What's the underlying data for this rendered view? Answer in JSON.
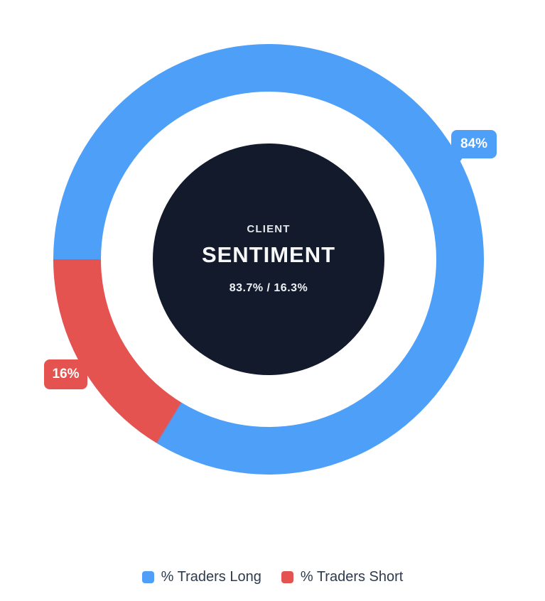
{
  "chart_data": {
    "type": "doughnut",
    "title": "CLIENT SENTIMENT",
    "categories": [
      "% Traders Long",
      "% Traders Short"
    ],
    "values": [
      83.7,
      16.3
    ],
    "series": [
      {
        "label": "% Traders Long",
        "value": 83.7,
        "badge": "84%",
        "color": "#4D9FF8"
      },
      {
        "label": "% Traders Short",
        "value": 16.3,
        "badge": "16%",
        "color": "#E4534F"
      }
    ],
    "rotation_deg": 270,
    "legend_position": "bottom",
    "center": {
      "kicker": "CLIENT",
      "title": "SENTIMENT",
      "values": "83.7% / 16.3%",
      "bg": "#131A2C"
    }
  }
}
